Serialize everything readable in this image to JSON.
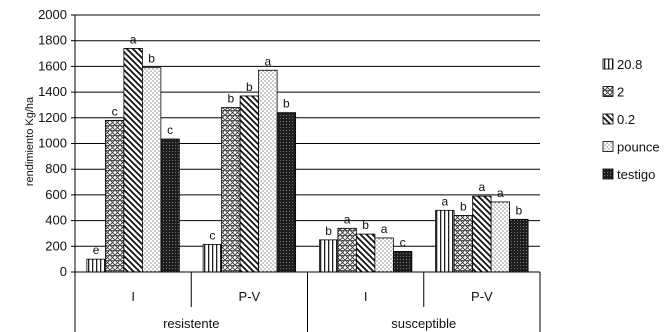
{
  "chart_data": {
    "type": "bar",
    "ylabel": "rendimiento Kg/ha",
    "ylim": [
      0,
      2000
    ],
    "yticks": [
      0,
      200,
      400,
      600,
      800,
      1000,
      1200,
      1400,
      1600,
      1800,
      2000
    ],
    "grid": true,
    "legend_position": "right",
    "categories": [
      "I",
      "P-V",
      "I",
      "P-V"
    ],
    "category_groups": [
      {
        "label": "resistente",
        "categories": [
          "I",
          "P-V"
        ]
      },
      {
        "label": "susceptible",
        "categories": [
          "I",
          "P-V"
        ]
      }
    ],
    "series": [
      {
        "name": "20.8",
        "pattern": "vertical-lines",
        "values": [
          100,
          215,
          250,
          480
        ],
        "labels": [
          "e",
          "c",
          "b",
          "a"
        ]
      },
      {
        "name": "2",
        "pattern": "crosshatch",
        "values": [
          1180,
          1280,
          340,
          440
        ],
        "labels": [
          "c",
          "b",
          "a",
          "b"
        ]
      },
      {
        "name": "0.2",
        "pattern": "diagonal-lines",
        "values": [
          1740,
          1370,
          295,
          590
        ],
        "labels": [
          "a",
          "b",
          "b",
          "a"
        ]
      },
      {
        "name": "pounce",
        "pattern": "dots",
        "values": [
          1590,
          1570,
          265,
          545
        ],
        "labels": [
          "b",
          "a",
          "a",
          "a"
        ]
      },
      {
        "name": "testigo",
        "pattern": "dark-dots",
        "values": [
          1035,
          1240,
          160,
          410
        ],
        "labels": [
          "c",
          "b",
          "c",
          "b"
        ]
      }
    ],
    "colors": {
      "axis": "#000000",
      "grid": "#000000",
      "dark_fill": "#1e1e1e"
    }
  }
}
